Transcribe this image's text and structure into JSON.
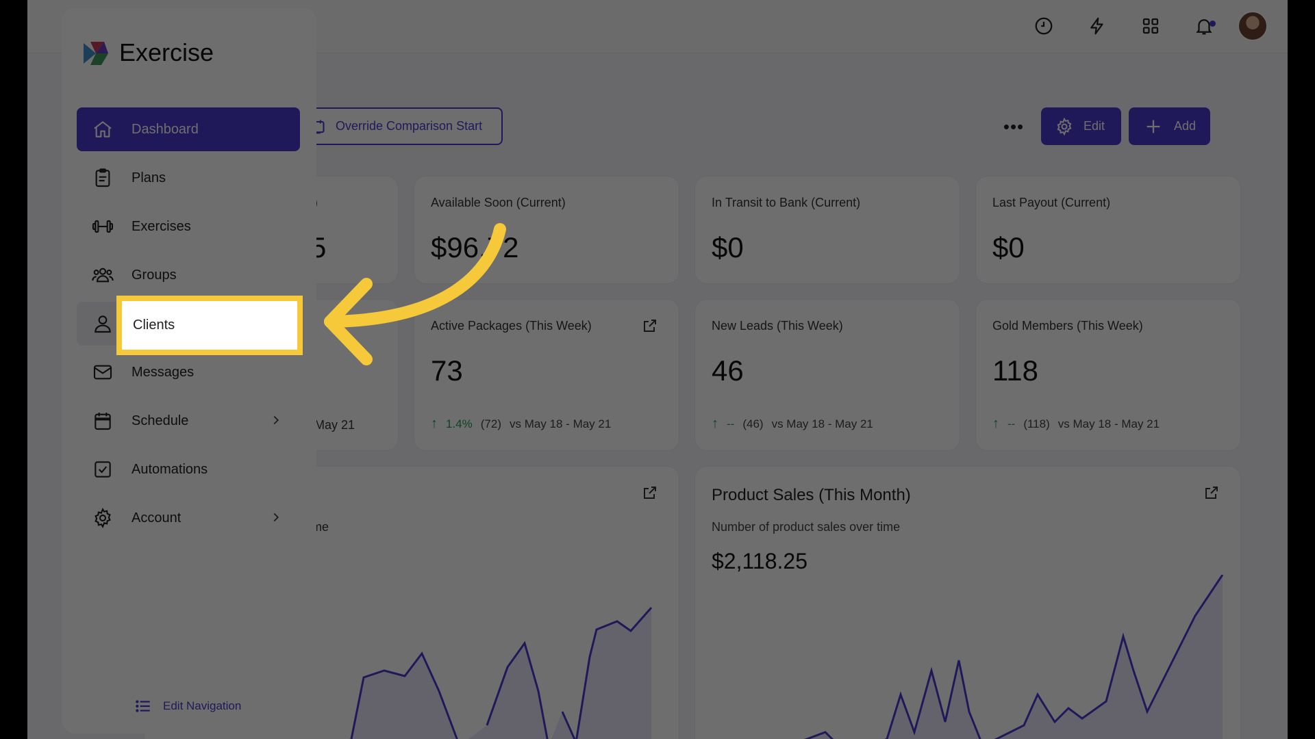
{
  "app": {
    "brand": "Exercise"
  },
  "sidebar": {
    "items": [
      {
        "label": "Dashboard",
        "icon": "home-icon"
      },
      {
        "label": "Plans",
        "icon": "clipboard-icon"
      },
      {
        "label": "Exercises",
        "icon": "dumbbell-icon"
      },
      {
        "label": "Groups",
        "icon": "users-icon"
      },
      {
        "label": "Clients",
        "icon": "user-icon"
      },
      {
        "label": "Messages",
        "icon": "mail-icon"
      },
      {
        "label": "Schedule",
        "icon": "calendar-icon"
      },
      {
        "label": "Automations",
        "icon": "checkbox-icon"
      },
      {
        "label": "Account",
        "icon": "gear-icon"
      }
    ],
    "edit_navigation": "Edit Navigation"
  },
  "toolbar": {
    "override_label": "Override Comparison Start",
    "more_label": "•••",
    "edit_label": "Edit",
    "add_label": "Add"
  },
  "cards_row1": [
    {
      "title_fragment": "t)",
      "value_fragment": "5"
    },
    {
      "title": "Available Soon (Current)",
      "value": "$96.72"
    },
    {
      "title": "In Transit to Bank (Current)",
      "value": "$0"
    },
    {
      "title": "Last Payout (Current)",
      "value": "$0"
    }
  ],
  "cards_row2": [
    {
      "foot_fragment": "May 21"
    },
    {
      "title": "Active Packages (This Week)",
      "value": "73",
      "change": "1.4%",
      "previous": "(72)",
      "comparison": "vs May 18 - May 21"
    },
    {
      "title": "New Leads (This Week)",
      "value": "46",
      "change": "--",
      "previous": "(46)",
      "comparison": "vs May 18 - May 21"
    },
    {
      "title": "Gold Members (This Week)",
      "value": "118",
      "change": "--",
      "previous": "(118)",
      "comparison": "vs May 18 - May 21"
    }
  ],
  "charts": [
    {
      "subtitle_fragment": "me"
    },
    {
      "title": "Product Sales (This Month)",
      "subtitle": "Number of product sales over time",
      "total": "$2,118.25"
    }
  ],
  "colors": {
    "accent": "#4c3bcf",
    "highlight": "#f5c93a",
    "positive": "#1f9d55",
    "overlay": "rgba(0,0,0,0.57)"
  }
}
